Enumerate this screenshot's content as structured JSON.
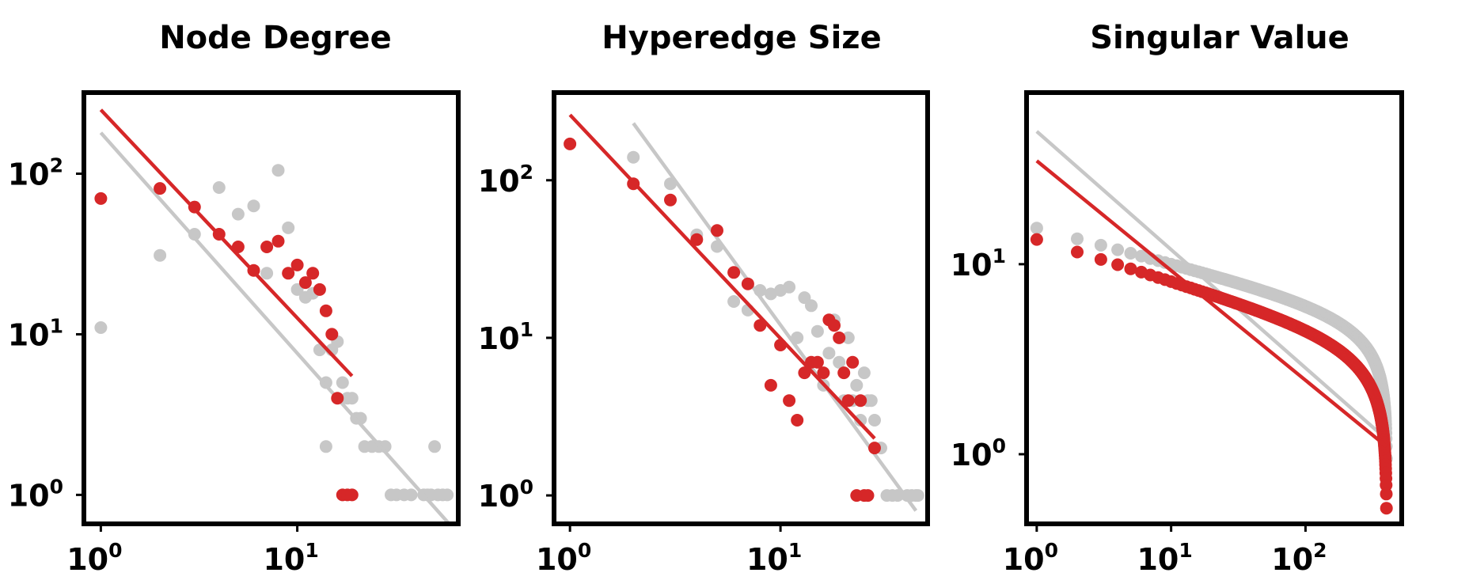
{
  "colors": {
    "red": "#d62728",
    "gray": "#c7c7c7",
    "frame": "#000000"
  },
  "chart_data": [
    {
      "type": "scatter",
      "title": "Node Degree",
      "xscale": "log",
      "yscale": "log",
      "xlim": [
        0.82,
        66
      ],
      "ylim": [
        0.66,
        320
      ],
      "xticks": [
        {
          "value": 1,
          "label": "10",
          "exp": "0"
        },
        {
          "value": 10,
          "label": "10",
          "exp": "1"
        }
      ],
      "yticks": [
        {
          "value": 1,
          "label": "10",
          "exp": "0"
        },
        {
          "value": 10,
          "label": "10",
          "exp": "1"
        },
        {
          "value": 100,
          "label": "10",
          "exp": "2"
        }
      ],
      "series": [
        {
          "color": "gray",
          "points": [
            [
              1,
              11
            ],
            [
              2,
              31
            ],
            [
              3,
              42
            ],
            [
              4,
              82
            ],
            [
              5,
              56
            ],
            [
              6,
              63
            ],
            [
              7,
              24
            ],
            [
              8,
              105
            ],
            [
              9,
              46
            ],
            [
              10,
              19
            ],
            [
              11,
              17
            ],
            [
              12,
              18
            ],
            [
              13,
              8
            ],
            [
              14,
              2
            ],
            [
              14,
              5
            ],
            [
              15,
              8
            ],
            [
              16,
              9
            ],
            [
              17,
              5
            ],
            [
              18,
              4
            ],
            [
              19,
              4
            ],
            [
              20,
              3
            ],
            [
              21,
              3
            ],
            [
              22,
              2
            ],
            [
              24,
              2
            ],
            [
              26,
              2
            ],
            [
              28,
              2
            ],
            [
              30,
              1
            ],
            [
              32,
              1
            ],
            [
              35,
              1
            ],
            [
              38,
              1
            ],
            [
              44,
              1
            ],
            [
              46,
              1
            ],
            [
              48,
              1
            ],
            [
              50,
              2
            ],
            [
              52,
              1
            ],
            [
              55,
              1
            ],
            [
              58,
              1
            ]
          ],
          "fit": [
            [
              1,
              180
            ],
            [
              60,
              0.65
            ]
          ]
        },
        {
          "color": "red",
          "points": [
            [
              1,
              70
            ],
            [
              2,
              81
            ],
            [
              3,
              62
            ],
            [
              4,
              42
            ],
            [
              5,
              35
            ],
            [
              6,
              25
            ],
            [
              7,
              35
            ],
            [
              8,
              38
            ],
            [
              9,
              24
            ],
            [
              10,
              27
            ],
            [
              11,
              21
            ],
            [
              12,
              24
            ],
            [
              13,
              19
            ],
            [
              14,
              14
            ],
            [
              15,
              10
            ],
            [
              16,
              4
            ],
            [
              17,
              1
            ],
            [
              18,
              1
            ],
            [
              19,
              1
            ]
          ],
          "fit": [
            [
              1,
              250
            ],
            [
              19,
              5.5
            ]
          ]
        }
      ]
    },
    {
      "type": "scatter",
      "title": "Hyperedge Size",
      "xscale": "log",
      "yscale": "log",
      "xlim": [
        0.84,
        50
      ],
      "ylim": [
        0.66,
        360
      ],
      "xticks": [
        {
          "value": 1,
          "label": "10",
          "exp": "0"
        },
        {
          "value": 10,
          "label": "10",
          "exp": "1"
        }
      ],
      "yticks": [
        {
          "value": 1,
          "label": "10",
          "exp": "0"
        },
        {
          "value": 10,
          "label": "10",
          "exp": "1"
        },
        {
          "value": 100,
          "label": "10",
          "exp": "2"
        }
      ],
      "series": [
        {
          "color": "gray",
          "points": [
            [
              2,
              140
            ],
            [
              3,
              95
            ],
            [
              4,
              45
            ],
            [
              5,
              38
            ],
            [
              6,
              17
            ],
            [
              7,
              15
            ],
            [
              8,
              20
            ],
            [
              9,
              19
            ],
            [
              10,
              20
            ],
            [
              11,
              21
            ],
            [
              12,
              10
            ],
            [
              13,
              18
            ],
            [
              14,
              16
            ],
            [
              15,
              11
            ],
            [
              16,
              5
            ],
            [
              17,
              8
            ],
            [
              18,
              13
            ],
            [
              19,
              7
            ],
            [
              20,
              4
            ],
            [
              21,
              10
            ],
            [
              22,
              4
            ],
            [
              23,
              5
            ],
            [
              24,
              3
            ],
            [
              25,
              6
            ],
            [
              26,
              4
            ],
            [
              27,
              4
            ],
            [
              28,
              3
            ],
            [
              30,
              2
            ],
            [
              32,
              1
            ],
            [
              34,
              1
            ],
            [
              36,
              1
            ],
            [
              40,
              1
            ],
            [
              42,
              1
            ],
            [
              44,
              1
            ],
            [
              45,
              1
            ]
          ],
          "fit": [
            [
              2,
              230
            ],
            [
              44,
              0.8
            ]
          ]
        },
        {
          "color": "red",
          "points": [
            [
              1,
              170
            ],
            [
              2,
              95
            ],
            [
              3,
              75
            ],
            [
              4,
              42
            ],
            [
              5,
              48
            ],
            [
              6,
              26
            ],
            [
              7,
              22
            ],
            [
              8,
              12
            ],
            [
              9,
              5
            ],
            [
              10,
              9
            ],
            [
              11,
              4
            ],
            [
              12,
              3
            ],
            [
              13,
              6
            ],
            [
              14,
              7
            ],
            [
              15,
              7
            ],
            [
              16,
              6
            ],
            [
              17,
              13
            ],
            [
              18,
              12
            ],
            [
              19,
              10
            ],
            [
              20,
              6
            ],
            [
              21,
              4
            ],
            [
              22,
              7
            ],
            [
              23,
              1
            ],
            [
              24,
              4
            ],
            [
              25,
              1
            ],
            [
              26,
              1
            ],
            [
              28,
              2
            ]
          ],
          "fit": [
            [
              1,
              260
            ],
            [
              28,
              2.3
            ]
          ]
        }
      ]
    },
    {
      "type": "scatter",
      "title": "Singular Value",
      "xscale": "log",
      "yscale": "log",
      "xlim": [
        0.84,
        520
      ],
      "ylim": [
        0.43,
        80
      ],
      "xticks": [
        {
          "value": 1,
          "label": "10",
          "exp": "0"
        },
        {
          "value": 10,
          "label": "10",
          "exp": "1"
        },
        {
          "value": 100,
          "label": "10",
          "exp": "2"
        }
      ],
      "yticks": [
        {
          "value": 1,
          "label": "10",
          "exp": "0"
        },
        {
          "value": 10,
          "label": "10",
          "exp": "1"
        }
      ],
      "series": [
        {
          "color": "gray",
          "curve": {
            "start_y": 15.5,
            "end_x": 400,
            "end_y": 0.95
          },
          "fit": [
            [
              1,
              50
            ],
            [
              400,
              1.2
            ]
          ]
        },
        {
          "color": "red",
          "curve": {
            "start_y": 13.5,
            "end_x": 400,
            "end_y": 0.52
          },
          "fit": [
            [
              1,
              35
            ],
            [
              400,
              1.1
            ]
          ]
        }
      ]
    }
  ]
}
